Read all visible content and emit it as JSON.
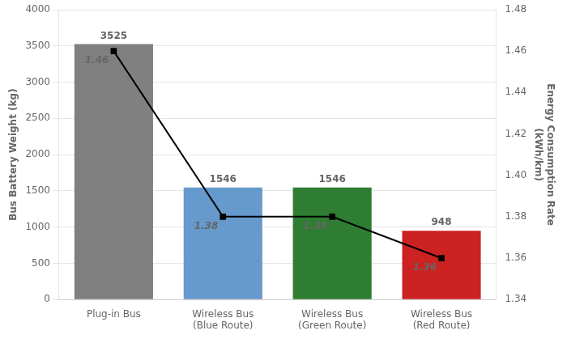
{
  "chart_data": {
    "type": "bar",
    "categories": [
      "Plug-in Bus",
      "Wireless Bus\n(Blue Route)",
      "Wireless Bus\n(Green Route)",
      "Wireless Bus\n(Red Route)"
    ],
    "series": [
      {
        "type": "bar",
        "colors": [
          "#808080",
          "#6699CC",
          "#2E7D32",
          "#CC2222"
        ],
        "values": [
          3525,
          1546,
          1546,
          948
        ]
      },
      {
        "type": "line",
        "axis": "y2",
        "color": "#000000",
        "marker": "square",
        "values": [
          1.46,
          1.38,
          1.38,
          1.36
        ]
      }
    ],
    "ylabel": "Bus Battery Weight (kg)",
    "y2label": "Energy Consumption Rate\n(kWh/km)",
    "ylim": [
      0,
      4000
    ],
    "yticks": [
      0,
      500,
      1000,
      1500,
      2000,
      2500,
      3000,
      3500,
      4000
    ],
    "y2lim": [
      1.34,
      1.48
    ],
    "y2ticks": [
      1.34,
      1.36,
      1.38,
      {
        "value": 1.4,
        "label": "1.40"
      },
      1.42,
      1.44,
      1.46,
      1.48
    ],
    "grid": true,
    "data_labels": true
  }
}
